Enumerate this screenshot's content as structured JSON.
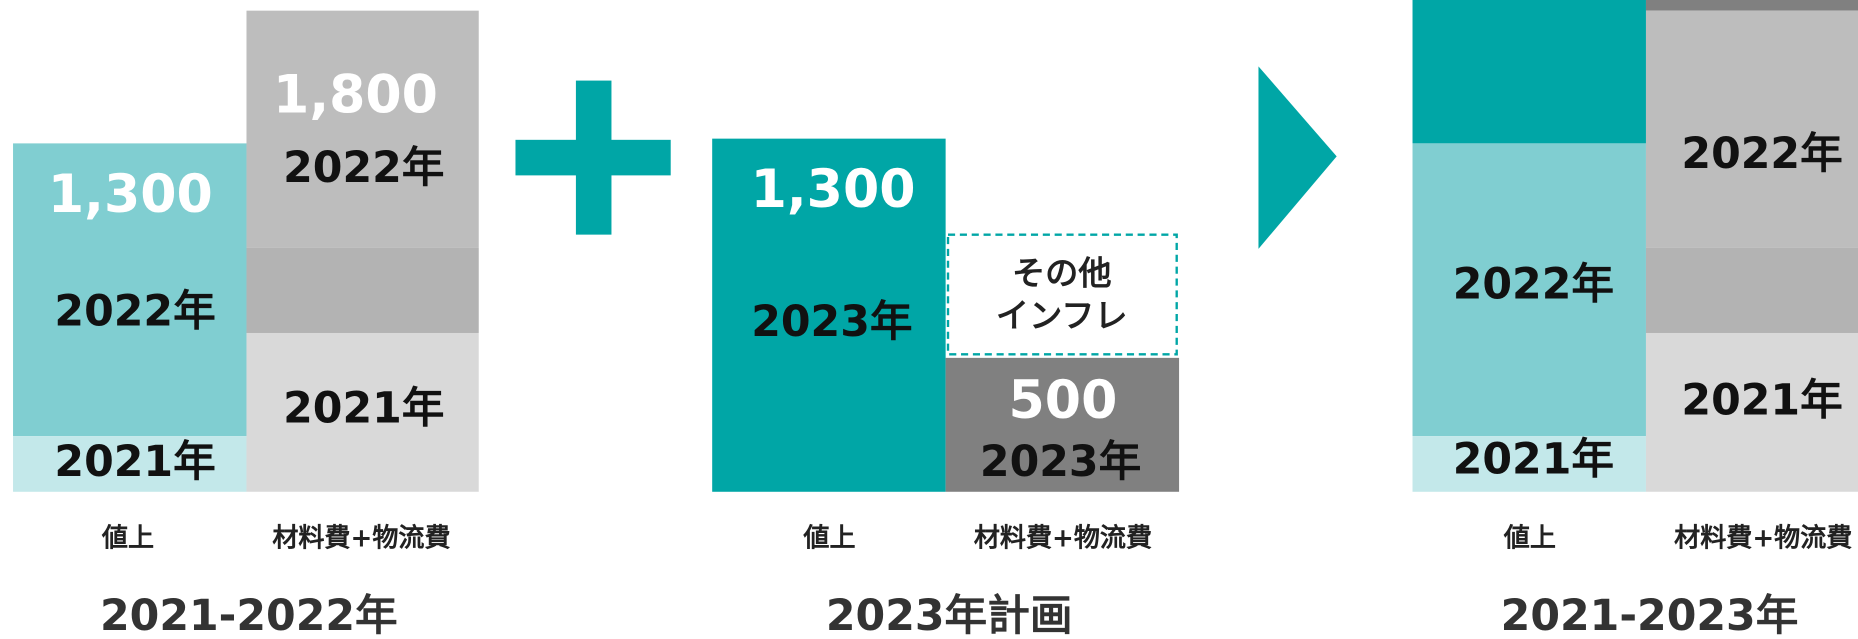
{
  "panels": [
    {
      "title": "2021-2022年",
      "columns": [
        {
          "label": "値上",
          "texts": [
            "1,300",
            "2022年",
            "2021年"
          ]
        },
        {
          "label": "材料費+物流費",
          "texts": [
            "1,800",
            "2022年",
            "2021年"
          ]
        }
      ]
    },
    {
      "title": "2023年計画",
      "columns": [
        {
          "label": "値上",
          "texts": [
            "1,300",
            "2023年"
          ]
        },
        {
          "label": "材料費+物流費",
          "texts": [
            "その他",
            "インフレ",
            "500",
            "2023年"
          ]
        }
      ]
    },
    {
      "title": "2021-2023年",
      "columns": [
        {
          "label": "値上",
          "texts": [
            "2022年",
            "2021年"
          ]
        },
        {
          "label": "材料費+物流費",
          "texts": [
            "2022年",
            "2021年"
          ]
        }
      ]
    }
  ]
}
